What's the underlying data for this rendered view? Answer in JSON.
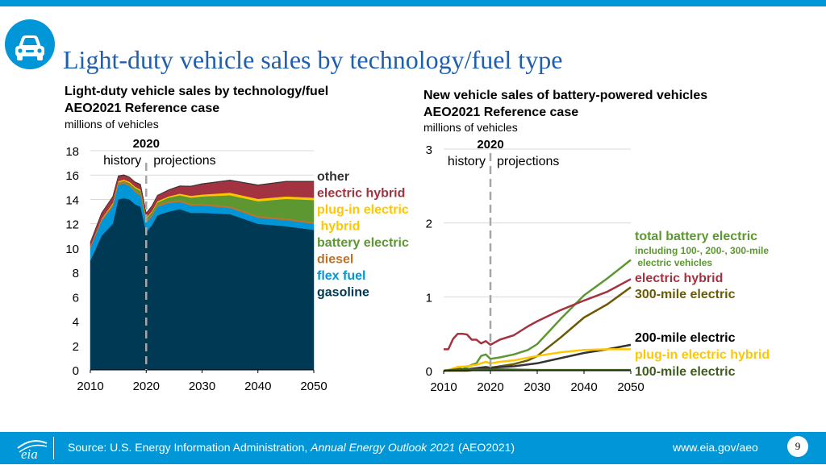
{
  "page": {
    "title": "Light-duty vehicle sales by technology/fuel type",
    "icon": "car-icon",
    "accent_color": "#0096d7",
    "title_color": "#1f5fad"
  },
  "left_panel": {
    "subtitle_1": "Light-duty vehicle sales by technology/fuel",
    "subtitle_2": "AEO2021 Reference case",
    "unit": "millions of vehicles"
  },
  "right_panel": {
    "subtitle_1": "New vehicle sales of battery-powered vehicles",
    "subtitle_2": "AEO2021 Reference case",
    "unit": "millions of vehicles"
  },
  "footer": {
    "logo_text": "eia",
    "source_prefix": "Source: U.S. Energy Information Administration, ",
    "source_title": "Annual Energy Outlook 2021",
    "source_suffix": " (AEO2021)",
    "url": "www.eia.gov/aeo",
    "page_number": "9"
  },
  "chart_data": [
    {
      "type": "area",
      "stacked": true,
      "x": [
        2010,
        2012,
        2014,
        2015,
        2016,
        2017,
        2018,
        2019,
        2020,
        2021,
        2022,
        2024,
        2026,
        2028,
        2030,
        2035,
        2040,
        2045,
        2050
      ],
      "ylim": [
        0,
        18
      ],
      "yticks": [
        0,
        2,
        4,
        6,
        8,
        10,
        12,
        14,
        16,
        18
      ],
      "xticks": [
        2010,
        2020,
        2030,
        2040,
        2050
      ],
      "divider_year": 2020,
      "divider_label": "2020",
      "history_label": "history",
      "projections_label": "projections",
      "series": [
        {
          "name": "gasoline",
          "color": "#003953",
          "values": [
            9.0,
            11.0,
            12.0,
            14.0,
            14.1,
            14.0,
            13.6,
            13.4,
            11.3,
            11.9,
            12.7,
            13.0,
            13.2,
            12.9,
            12.9,
            12.8,
            12.0,
            11.8,
            11.5
          ]
        },
        {
          "name": "flex fuel",
          "color": "#0096d7",
          "values": [
            1.0,
            1.2,
            1.4,
            1.2,
            1.2,
            1.1,
            1.0,
            0.9,
            0.8,
            0.7,
            0.7,
            0.7,
            0.6,
            0.6,
            0.6,
            0.5,
            0.5,
            0.5,
            0.5
          ]
        },
        {
          "name": "diesel",
          "color": "#bd732a",
          "values": [
            0.15,
            0.15,
            0.15,
            0.15,
            0.15,
            0.15,
            0.15,
            0.15,
            0.12,
            0.15,
            0.15,
            0.15,
            0.15,
            0.15,
            0.15,
            0.15,
            0.15,
            0.15,
            0.15
          ]
        },
        {
          "name": "battery electric",
          "color": "#5d9732",
          "values": [
            0.0,
            0.0,
            0.05,
            0.05,
            0.08,
            0.1,
            0.2,
            0.25,
            0.2,
            0.2,
            0.2,
            0.3,
            0.4,
            0.5,
            0.6,
            0.9,
            1.2,
            1.6,
            1.8
          ]
        },
        {
          "name": "plug-in electric hybrid",
          "color": "#ffc702",
          "values": [
            0.0,
            0.05,
            0.1,
            0.1,
            0.1,
            0.1,
            0.1,
            0.1,
            0.08,
            0.08,
            0.1,
            0.1,
            0.12,
            0.15,
            0.15,
            0.2,
            0.2,
            0.2,
            0.2
          ]
        },
        {
          "name": "electric hybrid",
          "color": "#a33340",
          "values": [
            0.3,
            0.45,
            0.5,
            0.4,
            0.35,
            0.35,
            0.35,
            0.4,
            0.35,
            0.4,
            0.45,
            0.5,
            0.6,
            0.75,
            0.85,
            1.0,
            1.1,
            1.2,
            1.3
          ]
        },
        {
          "name": "other",
          "color": "#333333",
          "values": [
            0.05,
            0.05,
            0.05,
            0.05,
            0.05,
            0.05,
            0.05,
            0.05,
            0.05,
            0.05,
            0.05,
            0.05,
            0.05,
            0.05,
            0.05,
            0.05,
            0.05,
            0.05,
            0.05
          ]
        }
      ],
      "legend": [
        {
          "label": "other",
          "color": "#333333",
          "lines": [
            "other"
          ]
        },
        {
          "label": "electric hybrid",
          "color": "#a33340",
          "lines": [
            "electric hybrid"
          ]
        },
        {
          "label": "plug-in electric hybrid",
          "color": "#ffc702",
          "lines": [
            "plug-in electric",
            " hybrid"
          ]
        },
        {
          "label": "battery electric",
          "color": "#5d9732",
          "lines": [
            "battery electric"
          ]
        },
        {
          "label": "diesel",
          "color": "#bd732a",
          "lines": [
            "diesel"
          ]
        },
        {
          "label": "flex fuel",
          "color": "#0096d7",
          "lines": [
            "flex fuel"
          ]
        },
        {
          "label": "gasoline",
          "color": "#003953",
          "lines": [
            "gasoline"
          ]
        }
      ]
    },
    {
      "type": "line",
      "ylim": [
        0,
        3
      ],
      "yticks": [
        0,
        1,
        2,
        3
      ],
      "xticks": [
        2010,
        2020,
        2030,
        2040,
        2050
      ],
      "divider_year": 2020,
      "divider_label": "2020",
      "history_label": "history",
      "projections_label": "projections",
      "series": [
        {
          "name": "total battery electric",
          "color": "#5d9732",
          "x": [
            2010,
            2012,
            2013,
            2014,
            2015,
            2016,
            2017,
            2018,
            2019,
            2020,
            2022,
            2025,
            2028,
            2030,
            2035,
            2040,
            2045,
            2050
          ],
          "values": [
            0.0,
            0.02,
            0.05,
            0.02,
            0.05,
            0.08,
            0.1,
            0.2,
            0.22,
            0.16,
            0.18,
            0.22,
            0.28,
            0.36,
            0.7,
            1.02,
            1.25,
            1.5
          ]
        },
        {
          "name": "electric hybrid",
          "color": "#a33340",
          "x": [
            2010,
            2011,
            2012,
            2013,
            2014,
            2015,
            2016,
            2017,
            2018,
            2019,
            2020,
            2022,
            2025,
            2028,
            2030,
            2035,
            2040,
            2045,
            2050
          ],
          "values": [
            0.29,
            0.29,
            0.43,
            0.5,
            0.5,
            0.49,
            0.42,
            0.42,
            0.37,
            0.4,
            0.35,
            0.42,
            0.48,
            0.6,
            0.67,
            0.82,
            0.95,
            1.07,
            1.24
          ]
        },
        {
          "name": "300-mile electric",
          "color": "#6b5a04",
          "x": [
            2010,
            2015,
            2019,
            2020,
            2022,
            2025,
            2028,
            2030,
            2035,
            2040,
            2045,
            2050
          ],
          "values": [
            0.0,
            0.0,
            0.03,
            0.04,
            0.06,
            0.09,
            0.14,
            0.2,
            0.45,
            0.72,
            0.9,
            1.13
          ]
        },
        {
          "name": "200-mile electric",
          "color": "#333333",
          "x": [
            2010,
            2015,
            2019,
            2020,
            2025,
            2030,
            2035,
            2040,
            2045,
            2050
          ],
          "values": [
            0.0,
            0.02,
            0.05,
            0.04,
            0.06,
            0.1,
            0.17,
            0.24,
            0.29,
            0.35
          ]
        },
        {
          "name": "plug-in electric hybrid",
          "color": "#ffc702",
          "x": [
            2010,
            2011,
            2013,
            2015,
            2017,
            2018,
            2019,
            2020,
            2022,
            2025,
            2030,
            2035,
            2040,
            2045,
            2050
          ],
          "values": [
            0.0,
            0.01,
            0.05,
            0.06,
            0.08,
            0.1,
            0.12,
            0.1,
            0.12,
            0.14,
            0.2,
            0.25,
            0.28,
            0.29,
            0.29
          ]
        },
        {
          "name": "100-mile electric",
          "color": "#3e5c1e",
          "x": [
            2010,
            2013,
            2015,
            2018,
            2020,
            2030,
            2040,
            2050
          ],
          "values": [
            0.0,
            0.02,
            0.02,
            0.02,
            0.02,
            0.01,
            0.01,
            0.01
          ]
        }
      ],
      "legend": [
        {
          "label": "total battery electric",
          "color": "#5d9732",
          "bold": true,
          "size": 16,
          "lines": [
            "total battery electric"
          ]
        },
        {
          "label": "including 100-, 200-, 300-mile electric vehicles",
          "color": "#5d9732",
          "bold": true,
          "size": 12,
          "lines": [
            " including 100-, 200-, 300-mile",
            " electric vehicles"
          ]
        },
        {
          "label": "electric hybrid",
          "color": "#a33340",
          "bold": true,
          "size": 16,
          "lines": [
            "electric hybrid"
          ]
        },
        {
          "label": "300-mile electric",
          "color": "#6b5a04",
          "bold": true,
          "size": 16,
          "lines": [
            "300-mile electric"
          ]
        },
        {
          "label": "200-mile electric",
          "color": "#000000",
          "bold": true,
          "size": 16,
          "lines": [
            "200-mile electric"
          ]
        },
        {
          "label": "plug-in electric hybrid",
          "color": "#ffc702",
          "bold": true,
          "size": 16,
          "lines": [
            "plug-in electric hybrid"
          ]
        },
        {
          "label": "100-mile electric",
          "color": "#3e5c1e",
          "bold": true,
          "size": 16,
          "lines": [
            "100-mile electric"
          ]
        }
      ]
    }
  ]
}
